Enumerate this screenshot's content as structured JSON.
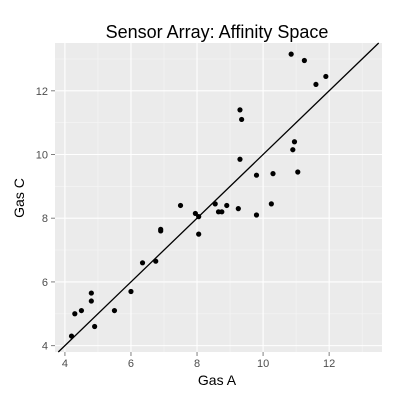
{
  "chart_data": {
    "type": "scatter",
    "title": "Sensor Array: Affinity Space",
    "xlabel": "Gas A",
    "ylabel": "Gas C",
    "xlim": [
      3.7,
      13.6
    ],
    "ylim": [
      3.8,
      13.5
    ],
    "x_ticks": [
      4,
      6,
      8,
      10,
      12
    ],
    "y_ticks": [
      4,
      6,
      8,
      10,
      12
    ],
    "grid": true,
    "theme": {
      "panel_bg": "#ebebeb",
      "grid_major": "#ffffff",
      "point_color": "#000000",
      "line_color": "#000000"
    },
    "trend_line": {
      "slope": 1,
      "intercept": 0
    },
    "points": [
      {
        "x": 4.2,
        "y": 4.3
      },
      {
        "x": 4.3,
        "y": 5.0
      },
      {
        "x": 4.5,
        "y": 5.1
      },
      {
        "x": 4.8,
        "y": 5.4
      },
      {
        "x": 4.8,
        "y": 5.65
      },
      {
        "x": 4.9,
        "y": 4.6
      },
      {
        "x": 5.5,
        "y": 5.1
      },
      {
        "x": 6.0,
        "y": 5.7
      },
      {
        "x": 6.35,
        "y": 6.6
      },
      {
        "x": 6.75,
        "y": 6.65
      },
      {
        "x": 6.9,
        "y": 7.6
      },
      {
        "x": 6.9,
        "y": 7.65
      },
      {
        "x": 7.5,
        "y": 8.4
      },
      {
        "x": 7.95,
        "y": 8.15
      },
      {
        "x": 8.05,
        "y": 8.05
      },
      {
        "x": 8.05,
        "y": 7.5
      },
      {
        "x": 8.55,
        "y": 8.45
      },
      {
        "x": 8.65,
        "y": 8.2
      },
      {
        "x": 8.75,
        "y": 8.2
      },
      {
        "x": 8.9,
        "y": 8.4
      },
      {
        "x": 9.25,
        "y": 8.3
      },
      {
        "x": 9.3,
        "y": 9.85
      },
      {
        "x": 9.3,
        "y": 11.4
      },
      {
        "x": 9.35,
        "y": 11.1
      },
      {
        "x": 9.8,
        "y": 8.1
      },
      {
        "x": 9.8,
        "y": 9.35
      },
      {
        "x": 10.25,
        "y": 8.45
      },
      {
        "x": 10.3,
        "y": 9.4
      },
      {
        "x": 10.85,
        "y": 13.15
      },
      {
        "x": 10.9,
        "y": 10.15
      },
      {
        "x": 10.95,
        "y": 10.4
      },
      {
        "x": 11.05,
        "y": 9.45
      },
      {
        "x": 11.25,
        "y": 12.95
      },
      {
        "x": 11.6,
        "y": 12.2
      },
      {
        "x": 11.9,
        "y": 12.45
      }
    ]
  }
}
